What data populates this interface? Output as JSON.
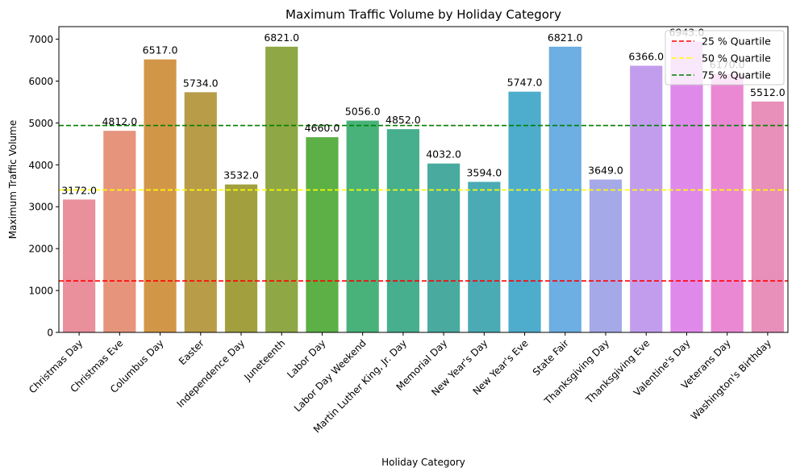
{
  "chart_data": {
    "type": "bar",
    "title": "Maximum Traffic Volume by Holiday Category",
    "xlabel": "Holiday Category",
    "ylabel": "Maximum Traffic Volume",
    "ylim": [
      0,
      7300
    ],
    "yticks": [
      0,
      1000,
      2000,
      3000,
      4000,
      5000,
      6000,
      7000
    ],
    "grid": false,
    "legend_position": "top-right",
    "categories": [
      "Christmas Day",
      "Christmas Eve",
      "Columbus Day",
      "Easter",
      "Independence Day",
      "Juneteenth",
      "Labor Day",
      "Labor Day Weekend",
      "Martin Luther King, Jr. Day",
      "Memorial Day",
      "New Year's Day",
      "New Year's Eve",
      "State Fair",
      "Thanksgiving Day",
      "Thanksgiving Eve",
      "Valentine's Day",
      "Veterans Day",
      "Washington's Birthday"
    ],
    "values": [
      3172,
      4812,
      6517,
      5734,
      3532,
      6821,
      4660,
      5056,
      4852,
      4032,
      3594,
      5747,
      6821,
      3649,
      6366,
      6943,
      6170,
      5512
    ],
    "value_labels": [
      "3172.0",
      "4812.0",
      "6517.0",
      "5734.0",
      "3532.0",
      "6821.0",
      "4660.0",
      "5056.0",
      "4852.0",
      "4032.0",
      "3594.0",
      "5747.0",
      "6821.0",
      "3649.0",
      "6366.0",
      "6943.0",
      "6170.0",
      "5512.0"
    ],
    "colors": [
      "#ea8f9c",
      "#e7947d",
      "#d29649",
      "#b89c48",
      "#a2a03e",
      "#8fa744",
      "#5cb046",
      "#48b27a",
      "#47ae8e",
      "#49ab9f",
      "#4aabb5",
      "#4eaccd",
      "#6daee3",
      "#a5a9e8",
      "#c39ded",
      "#df8aea",
      "#ea88d4",
      "#e88fba"
    ],
    "reference_lines": [
      {
        "name": "25 % Quartile",
        "value": 1230,
        "color": "#ff0000"
      },
      {
        "name": "50 % Quartile",
        "value": 3400,
        "color": "#ffff00"
      },
      {
        "name": "75 % Quartile",
        "value": 4940,
        "color": "#008000"
      }
    ]
  }
}
